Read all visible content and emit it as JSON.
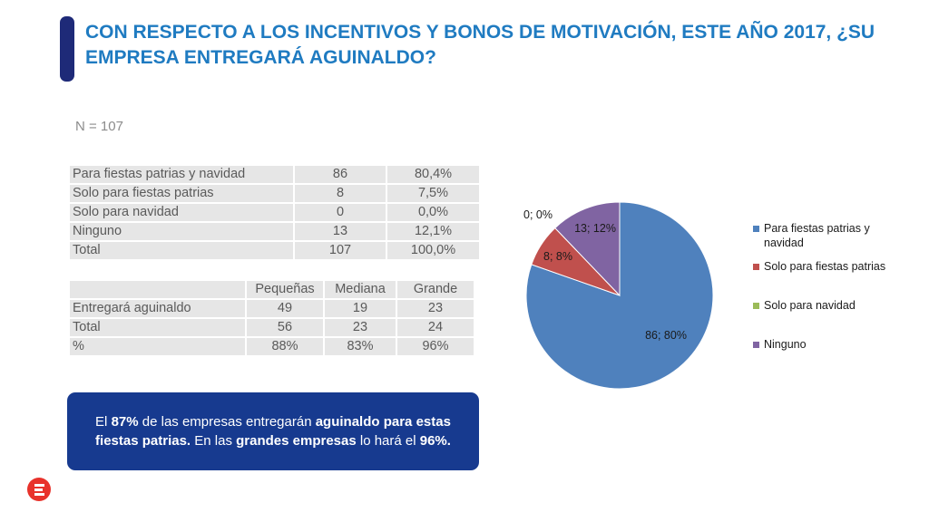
{
  "title": "CON RESPECTO A LOS INCENTIVOS Y BONOS DE MOTIVACIÓN, ESTE AÑO 2017, ¿SU EMPRESA ENTREGARÁ AGUINALDO?",
  "sample_size": "N = 107",
  "table1": {
    "rows": [
      [
        "Para fiestas patrias y navidad",
        "86",
        "80,4%"
      ],
      [
        "Solo para fiestas patrias",
        "8",
        "7,5%"
      ],
      [
        "Solo para navidad",
        "0",
        "0,0%"
      ],
      [
        "Ninguno",
        "13",
        "12,1%"
      ],
      [
        "Total",
        "107",
        "100,0%"
      ]
    ]
  },
  "table2": {
    "headers": [
      "",
      "Pequeñas",
      "Mediana",
      "Grande"
    ],
    "rows": [
      [
        "Entregará aguinaldo",
        "49",
        "19",
        "23"
      ],
      [
        "Total",
        "56",
        "23",
        "24"
      ],
      [
        "%",
        "88%",
        "83%",
        "96%"
      ]
    ]
  },
  "callout": {
    "p1": "El ",
    "b1": "87%",
    "p2": " de las empresas entregarán ",
    "b2": "aguinaldo para estas fiestas patrias.",
    "p3": " En las ",
    "b3": "grandes empresas",
    "p4": " lo hará el ",
    "b4": "96%."
  },
  "chart_data": {
    "type": "pie",
    "series": [
      {
        "values": [
          86,
          8,
          0,
          13
        ]
      }
    ],
    "categories": [
      "Para fiestas patrias y navidad",
      "Solo para fiestas patrias",
      "Solo para navidad",
      "Ninguno"
    ],
    "data_labels": [
      "86; 80%",
      "8; 8%",
      "0; 0%",
      "13; 12%"
    ],
    "colors": [
      "#4f81bd",
      "#c0504d",
      "#9bbb59",
      "#8064a2"
    ],
    "legend_position": "right"
  },
  "colors": {
    "title": "#1f7bc1",
    "callout_bg": "#173a8f",
    "accent_bar": "#1e2a78",
    "logo": "#e8322b"
  }
}
